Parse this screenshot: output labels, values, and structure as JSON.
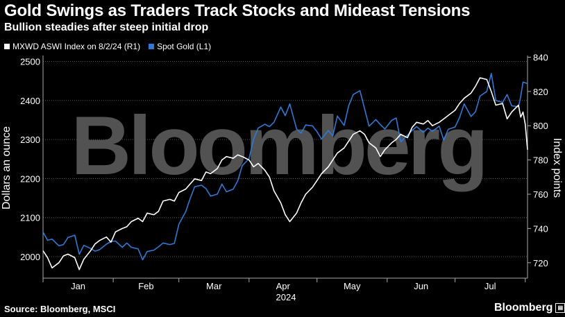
{
  "header": {
    "title": "Gold Swings as Traders Track Stocks and Mideast Tensions",
    "subtitle": "Bullion steadies after steep initial drop"
  },
  "footer": {
    "source": "Source: Bloomberg, MSCI",
    "brand": "Bloomberg"
  },
  "watermark": "Bloomberg",
  "colors": {
    "gold": "#2e7ad6",
    "msci": "#ffffff",
    "background": "#000000",
    "grid": "#555555"
  },
  "chart_data": {
    "type": "line",
    "title": "Gold Swings as Traders Track Stocks and Mideast Tensions",
    "subtitle": "Bullion steadies after steep initial drop",
    "x_label": "2024",
    "x_ticks": [
      "Jan",
      "Feb",
      "Mar",
      "Apr",
      "May",
      "Jun",
      "Jul"
    ],
    "x_range": [
      "2024-01-01",
      "2024-08-02"
    ],
    "y_left": {
      "label": "Dollars an ounce",
      "range": [
        1945,
        2515
      ],
      "ticks": [
        2000,
        2100,
        2200,
        2300,
        2400,
        2500
      ]
    },
    "y_right": {
      "label": "Index points",
      "range": [
        711,
        841
      ],
      "ticks": [
        720,
        740,
        760,
        780,
        800,
        820,
        840
      ]
    },
    "legend": "top-left",
    "grid": true,
    "series": [
      {
        "name": "MXWD ASWI Index on 8/2/24 (R1)",
        "axis": "right",
        "color": "#ffffff",
        "points": [
          [
            "2024-01-01",
            727
          ],
          [
            "2024-01-03",
            723
          ],
          [
            "2024-01-05",
            717
          ],
          [
            "2024-01-08",
            720
          ],
          [
            "2024-01-10",
            724
          ],
          [
            "2024-01-12",
            725
          ],
          [
            "2024-01-15",
            723
          ],
          [
            "2024-01-17",
            716
          ],
          [
            "2024-01-19",
            722
          ],
          [
            "2024-01-22",
            727
          ],
          [
            "2024-01-24",
            731
          ],
          [
            "2024-01-26",
            733
          ],
          [
            "2024-01-29",
            735
          ],
          [
            "2024-01-31",
            732
          ],
          [
            "2024-02-02",
            738
          ],
          [
            "2024-02-05",
            740
          ],
          [
            "2024-02-07",
            741
          ],
          [
            "2024-02-09",
            744
          ],
          [
            "2024-02-12",
            746
          ],
          [
            "2024-02-14",
            744
          ],
          [
            "2024-02-16",
            749
          ],
          [
            "2024-02-19",
            748
          ],
          [
            "2024-02-21",
            750
          ],
          [
            "2024-02-23",
            756
          ],
          [
            "2024-02-26",
            757
          ],
          [
            "2024-02-28",
            756
          ],
          [
            "2024-03-01",
            761
          ],
          [
            "2024-03-04",
            763
          ],
          [
            "2024-03-06",
            766
          ],
          [
            "2024-03-08",
            769
          ],
          [
            "2024-03-11",
            768
          ],
          [
            "2024-03-13",
            773
          ],
          [
            "2024-03-15",
            772
          ],
          [
            "2024-03-18",
            775
          ],
          [
            "2024-03-20",
            780
          ],
          [
            "2024-03-22",
            782
          ],
          [
            "2024-03-25",
            781
          ],
          [
            "2024-03-27",
            783
          ],
          [
            "2024-03-29",
            782
          ],
          [
            "2024-04-01",
            780
          ],
          [
            "2024-04-03",
            776
          ],
          [
            "2024-04-05",
            778
          ],
          [
            "2024-04-08",
            774
          ],
          [
            "2024-04-10",
            770
          ],
          [
            "2024-04-12",
            762
          ],
          [
            "2024-04-15",
            755
          ],
          [
            "2024-04-17",
            748
          ],
          [
            "2024-04-19",
            744
          ],
          [
            "2024-04-22",
            749
          ],
          [
            "2024-04-24",
            755
          ],
          [
            "2024-04-26",
            760
          ],
          [
            "2024-04-29",
            764
          ],
          [
            "2024-05-01",
            768
          ],
          [
            "2024-05-03",
            772
          ],
          [
            "2024-05-06",
            776
          ],
          [
            "2024-05-08",
            780
          ],
          [
            "2024-05-10",
            784
          ],
          [
            "2024-05-13",
            787
          ],
          [
            "2024-05-15",
            791
          ],
          [
            "2024-05-17",
            795
          ],
          [
            "2024-05-20",
            797
          ],
          [
            "2024-05-22",
            795
          ],
          [
            "2024-05-24",
            790
          ],
          [
            "2024-05-27",
            787
          ],
          [
            "2024-05-29",
            782
          ],
          [
            "2024-05-31",
            786
          ],
          [
            "2024-06-03",
            790
          ],
          [
            "2024-06-05",
            792
          ],
          [
            "2024-06-07",
            795
          ],
          [
            "2024-06-10",
            793
          ],
          [
            "2024-06-12",
            799
          ],
          [
            "2024-06-14",
            802
          ],
          [
            "2024-06-17",
            801
          ],
          [
            "2024-06-19",
            803
          ],
          [
            "2024-06-21",
            800
          ],
          [
            "2024-06-24",
            802
          ],
          [
            "2024-06-26",
            804
          ],
          [
            "2024-06-28",
            806
          ],
          [
            "2024-07-01",
            809
          ],
          [
            "2024-07-03",
            813
          ],
          [
            "2024-07-05",
            816
          ],
          [
            "2024-07-08",
            819
          ],
          [
            "2024-07-10",
            823
          ],
          [
            "2024-07-12",
            828
          ],
          [
            "2024-07-15",
            827
          ],
          [
            "2024-07-17",
            820
          ],
          [
            "2024-07-19",
            812
          ],
          [
            "2024-07-22",
            813
          ],
          [
            "2024-07-24",
            804
          ],
          [
            "2024-07-26",
            808
          ],
          [
            "2024-07-29",
            812
          ],
          [
            "2024-07-30",
            805
          ],
          [
            "2024-07-31",
            808
          ],
          [
            "2024-08-01",
            801
          ],
          [
            "2024-08-02",
            786
          ]
        ]
      },
      {
        "name": "Spot Gold (L1)",
        "axis": "left",
        "color": "#2e7ad6",
        "points": [
          [
            "2024-01-01",
            2063
          ],
          [
            "2024-01-03",
            2042
          ],
          [
            "2024-01-05",
            2045
          ],
          [
            "2024-01-08",
            2028
          ],
          [
            "2024-01-10",
            2031
          ],
          [
            "2024-01-12",
            2049
          ],
          [
            "2024-01-15",
            2055
          ],
          [
            "2024-01-17",
            2006
          ],
          [
            "2024-01-19",
            2029
          ],
          [
            "2024-01-22",
            2021
          ],
          [
            "2024-01-24",
            2014
          ],
          [
            "2024-01-26",
            2018
          ],
          [
            "2024-01-29",
            2032
          ],
          [
            "2024-01-31",
            2039
          ],
          [
            "2024-02-02",
            2040
          ],
          [
            "2024-02-05",
            2024
          ],
          [
            "2024-02-07",
            2035
          ],
          [
            "2024-02-09",
            2024
          ],
          [
            "2024-02-12",
            2020
          ],
          [
            "2024-02-14",
            1992
          ],
          [
            "2024-02-16",
            2013
          ],
          [
            "2024-02-19",
            2017
          ],
          [
            "2024-02-21",
            2025
          ],
          [
            "2024-02-23",
            2035
          ],
          [
            "2024-02-26",
            2031
          ],
          [
            "2024-02-28",
            2034
          ],
          [
            "2024-03-01",
            2083
          ],
          [
            "2024-03-04",
            2115
          ],
          [
            "2024-03-06",
            2149
          ],
          [
            "2024-03-08",
            2179
          ],
          [
            "2024-03-11",
            2183
          ],
          [
            "2024-03-13",
            2174
          ],
          [
            "2024-03-15",
            2155
          ],
          [
            "2024-03-18",
            2160
          ],
          [
            "2024-03-20",
            2186
          ],
          [
            "2024-03-22",
            2166
          ],
          [
            "2024-03-25",
            2173
          ],
          [
            "2024-03-27",
            2194
          ],
          [
            "2024-03-29",
            2233
          ],
          [
            "2024-04-01",
            2251
          ],
          [
            "2024-04-03",
            2300
          ],
          [
            "2024-04-05",
            2329
          ],
          [
            "2024-04-08",
            2339
          ],
          [
            "2024-04-10",
            2333
          ],
          [
            "2024-04-12",
            2344
          ],
          [
            "2024-04-15",
            2383
          ],
          [
            "2024-04-17",
            2361
          ],
          [
            "2024-04-19",
            2391
          ],
          [
            "2024-04-22",
            2327
          ],
          [
            "2024-04-24",
            2316
          ],
          [
            "2024-04-26",
            2337
          ],
          [
            "2024-04-29",
            2335
          ],
          [
            "2024-05-01",
            2320
          ],
          [
            "2024-05-03",
            2301
          ],
          [
            "2024-05-06",
            2323
          ],
          [
            "2024-05-08",
            2309
          ],
          [
            "2024-05-10",
            2360
          ],
          [
            "2024-05-13",
            2336
          ],
          [
            "2024-05-15",
            2386
          ],
          [
            "2024-05-17",
            2415
          ],
          [
            "2024-05-20",
            2425
          ],
          [
            "2024-05-22",
            2379
          ],
          [
            "2024-05-24",
            2334
          ],
          [
            "2024-05-27",
            2351
          ],
          [
            "2024-05-29",
            2338
          ],
          [
            "2024-05-31",
            2327
          ],
          [
            "2024-06-03",
            2349
          ],
          [
            "2024-06-05",
            2355
          ],
          [
            "2024-06-07",
            2294
          ],
          [
            "2024-06-10",
            2311
          ],
          [
            "2024-06-12",
            2323
          ],
          [
            "2024-06-14",
            2333
          ],
          [
            "2024-06-17",
            2318
          ],
          [
            "2024-06-19",
            2329
          ],
          [
            "2024-06-21",
            2321
          ],
          [
            "2024-06-24",
            2334
          ],
          [
            "2024-06-26",
            2298
          ],
          [
            "2024-06-28",
            2326
          ],
          [
            "2024-07-01",
            2332
          ],
          [
            "2024-07-03",
            2356
          ],
          [
            "2024-07-05",
            2391
          ],
          [
            "2024-07-08",
            2359
          ],
          [
            "2024-07-10",
            2371
          ],
          [
            "2024-07-12",
            2411
          ],
          [
            "2024-07-15",
            2423
          ],
          [
            "2024-07-17",
            2469
          ],
          [
            "2024-07-19",
            2400
          ],
          [
            "2024-07-22",
            2395
          ],
          [
            "2024-07-24",
            2415
          ],
          [
            "2024-07-26",
            2386
          ],
          [
            "2024-07-29",
            2384
          ],
          [
            "2024-07-30",
            2410
          ],
          [
            "2024-07-31",
            2447
          ],
          [
            "2024-08-01",
            2445
          ],
          [
            "2024-08-02",
            2443
          ]
        ]
      }
    ]
  }
}
